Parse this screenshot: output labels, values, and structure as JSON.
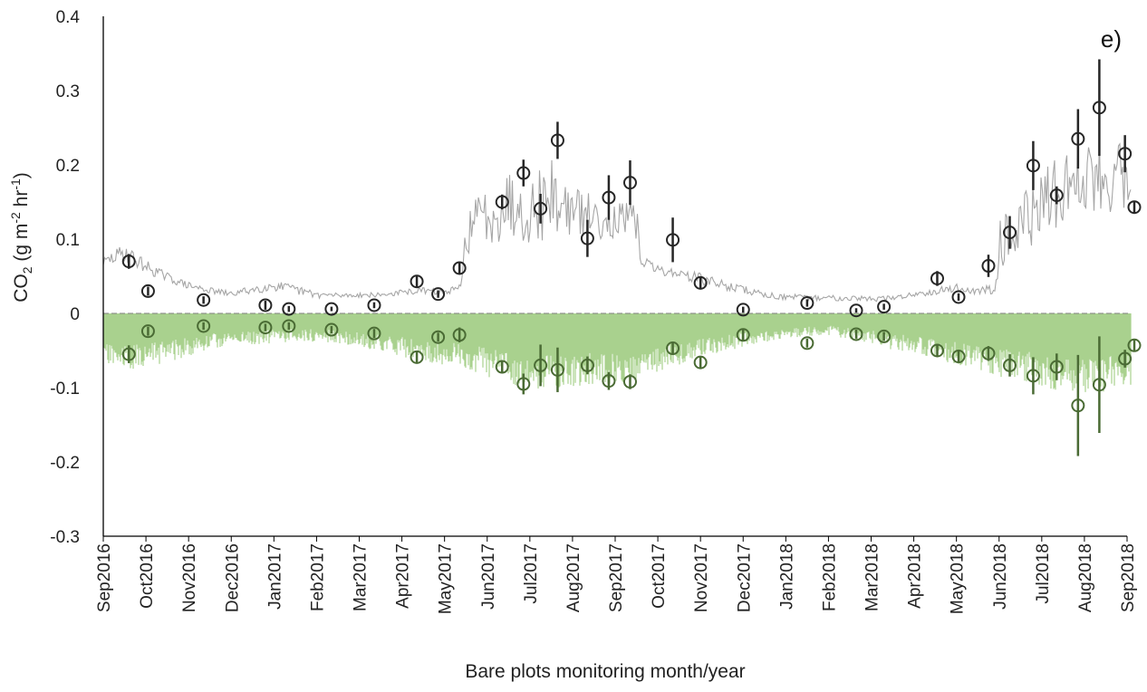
{
  "chart_data": {
    "type": "line",
    "panel_label": "e)",
    "xlabel": "Bare plots monitoring  month/year",
    "ylabel": "CO",
    "ylabel_sub": "2",
    "ylabel_units": " (g m",
    "ylabel_sup1": "-2",
    "ylabel_mid": " hr",
    "ylabel_sup2": "-1",
    "ylabel_end": ")",
    "ylim": [
      -0.3,
      0.4
    ],
    "y_ticks": [
      "0.4",
      "0.3",
      "0.2",
      "0.1",
      "0",
      "-0.1",
      "-0.2",
      "-0.3"
    ],
    "y_tick_values": [
      0.4,
      0.3,
      0.2,
      0.1,
      0,
      -0.1,
      -0.2,
      -0.3
    ],
    "x_range": [
      0,
      24
    ],
    "x_tick_labels": [
      "Sep2016",
      "Oct2016",
      "Nov2016",
      "Dec2016",
      "Jan2017",
      "Feb2017",
      "Mar2017",
      "Apr2017",
      "May2017",
      "Jun2017",
      "Jul2017",
      "Aug2017",
      "Sep2017",
      "Oct2017",
      "Nov2017",
      "Dec2017",
      "Jan2018",
      "Feb2018",
      "Mar2018",
      "Apr2018",
      "May2018",
      "Jun2018",
      "Jul2018",
      "Aug2018",
      "Sep2018"
    ],
    "colors": {
      "modeled_emission": "#a6a6a6",
      "modeled_uptake": "#a9d18e",
      "observed_emission": "#262626",
      "observed_uptake": "#4a6b34",
      "axis": "#000000",
      "zero_line": "#7f7f7f"
    },
    "series": [
      {
        "kind": "observed_emission",
        "points": [
          {
            "x": 0.6,
            "y": 0.07,
            "err": 0.01
          },
          {
            "x": 1.05,
            "y": 0.03,
            "err": 0.006
          },
          {
            "x": 2.35,
            "y": 0.018,
            "err": 0.005
          },
          {
            "x": 3.8,
            "y": 0.011,
            "err": 0.006
          },
          {
            "x": 4.35,
            "y": 0.006,
            "err": 0.004
          },
          {
            "x": 5.35,
            "y": 0.006,
            "err": 0.003
          },
          {
            "x": 6.35,
            "y": 0.011,
            "err": 0.004
          },
          {
            "x": 7.35,
            "y": 0.043,
            "err": 0.008
          },
          {
            "x": 7.85,
            "y": 0.026,
            "err": 0.005
          },
          {
            "x": 8.35,
            "y": 0.061,
            "err": 0.008
          },
          {
            "x": 9.35,
            "y": 0.15,
            "err": 0.01
          },
          {
            "x": 9.85,
            "y": 0.189,
            "err": 0.018
          },
          {
            "x": 10.25,
            "y": 0.141,
            "err": 0.02
          },
          {
            "x": 10.65,
            "y": 0.233,
            "err": 0.025
          },
          {
            "x": 11.35,
            "y": 0.101,
            "err": 0.025
          },
          {
            "x": 11.85,
            "y": 0.156,
            "err": 0.03
          },
          {
            "x": 12.35,
            "y": 0.176,
            "err": 0.03
          },
          {
            "x": 13.35,
            "y": 0.099,
            "err": 0.03
          },
          {
            "x": 14.0,
            "y": 0.041,
            "err": 0.008
          },
          {
            "x": 15.0,
            "y": 0.005,
            "err": 0.004
          },
          {
            "x": 16.5,
            "y": 0.014,
            "err": 0.005
          },
          {
            "x": 17.65,
            "y": 0.004,
            "err": 0.003
          },
          {
            "x": 18.3,
            "y": 0.009,
            "err": 0.004
          },
          {
            "x": 19.55,
            "y": 0.047,
            "err": 0.01
          },
          {
            "x": 20.05,
            "y": 0.022,
            "err": 0.005
          },
          {
            "x": 20.75,
            "y": 0.064,
            "err": 0.015
          },
          {
            "x": 21.25,
            "y": 0.109,
            "err": 0.022
          },
          {
            "x": 21.8,
            "y": 0.199,
            "err": 0.033
          },
          {
            "x": 22.35,
            "y": 0.159,
            "err": 0.012
          },
          {
            "x": 22.85,
            "y": 0.235,
            "err": 0.04
          },
          {
            "x": 23.35,
            "y": 0.277,
            "err": 0.065
          },
          {
            "x": 23.95,
            "y": 0.215,
            "err": 0.025
          },
          {
            "x": 24.85,
            "y": 0.143,
            "err": 0.008
          }
        ]
      },
      {
        "kind": "observed_uptake",
        "points": [
          {
            "x": 0.6,
            "y": -0.055,
            "err": 0.012
          },
          {
            "x": 1.05,
            "y": -0.024,
            "err": 0.006
          },
          {
            "x": 2.35,
            "y": -0.017,
            "err": 0.005
          },
          {
            "x": 3.8,
            "y": -0.019,
            "err": 0.005
          },
          {
            "x": 4.35,
            "y": -0.017,
            "err": 0.005
          },
          {
            "x": 5.35,
            "y": -0.022,
            "err": 0.005
          },
          {
            "x": 6.35,
            "y": -0.027,
            "err": 0.006
          },
          {
            "x": 7.35,
            "y": -0.059,
            "err": 0.008
          },
          {
            "x": 7.85,
            "y": -0.032,
            "err": 0.006
          },
          {
            "x": 8.35,
            "y": -0.029,
            "err": 0.01
          },
          {
            "x": 9.35,
            "y": -0.072,
            "err": 0.008
          },
          {
            "x": 9.85,
            "y": -0.095,
            "err": 0.014
          },
          {
            "x": 10.25,
            "y": -0.07,
            "err": 0.028
          },
          {
            "x": 10.65,
            "y": -0.076,
            "err": 0.03
          },
          {
            "x": 11.35,
            "y": -0.07,
            "err": 0.012
          },
          {
            "x": 11.85,
            "y": -0.091,
            "err": 0.012
          },
          {
            "x": 12.35,
            "y": -0.092,
            "err": 0.01
          },
          {
            "x": 13.35,
            "y": -0.047,
            "err": 0.008
          },
          {
            "x": 14.0,
            "y": -0.066,
            "err": 0.008
          },
          {
            "x": 15.0,
            "y": -0.029,
            "err": 0.008
          },
          {
            "x": 16.5,
            "y": -0.04,
            "err": 0.006
          },
          {
            "x": 17.65,
            "y": -0.028,
            "err": 0.006
          },
          {
            "x": 18.3,
            "y": -0.031,
            "err": 0.006
          },
          {
            "x": 19.55,
            "y": -0.05,
            "err": 0.008
          },
          {
            "x": 20.05,
            "y": -0.058,
            "err": 0.008
          },
          {
            "x": 20.75,
            "y": -0.054,
            "err": 0.01
          },
          {
            "x": 21.25,
            "y": -0.07,
            "err": 0.015
          },
          {
            "x": 21.8,
            "y": -0.084,
            "err": 0.025
          },
          {
            "x": 22.35,
            "y": -0.072,
            "err": 0.018
          },
          {
            "x": 22.85,
            "y": -0.124,
            "err": 0.068
          },
          {
            "x": 23.35,
            "y": -0.096,
            "err": 0.065
          },
          {
            "x": 23.95,
            "y": -0.061,
            "err": 0.012
          },
          {
            "x": 24.85,
            "y": -0.043,
            "err": 0.008
          }
        ]
      }
    ],
    "modeled_emission_envelope": {
      "x": [
        0,
        0.5,
        1,
        1.5,
        2,
        2.5,
        3,
        3.5,
        4,
        4.5,
        5,
        5.5,
        6,
        6.5,
        7,
        7.5,
        8,
        8.4,
        8.5,
        9,
        9.5,
        10,
        10.5,
        11,
        11.5,
        12,
        12.5,
        12.6,
        13,
        13.5,
        14,
        14.5,
        15,
        15.5,
        16,
        16.5,
        17,
        17.5,
        18,
        18.5,
        19,
        19.5,
        20,
        20.5,
        20.9,
        21.0,
        21.5,
        22,
        22.5,
        23,
        23.5,
        24,
        24.5,
        25
      ],
      "y_low": [
        0.055,
        0.055,
        0.045,
        0.035,
        0.028,
        0.022,
        0.018,
        0.02,
        0.022,
        0.018,
        0.015,
        0.016,
        0.018,
        0.018,
        0.02,
        0.022,
        0.02,
        0.025,
        0.08,
        0.09,
        0.1,
        0.095,
        0.1,
        0.105,
        0.1,
        0.1,
        0.095,
        0.055,
        0.045,
        0.04,
        0.03,
        0.025,
        0.02,
        0.015,
        0.013,
        0.013,
        0.012,
        0.013,
        0.012,
        0.013,
        0.017,
        0.02,
        0.022,
        0.018,
        0.02,
        0.06,
        0.08,
        0.1,
        0.12,
        0.13,
        0.13,
        0.13,
        0.12,
        0.095
      ],
      "y_high": [
        0.075,
        0.095,
        0.072,
        0.055,
        0.042,
        0.035,
        0.03,
        0.038,
        0.045,
        0.038,
        0.03,
        0.028,
        0.028,
        0.028,
        0.032,
        0.035,
        0.032,
        0.04,
        0.14,
        0.18,
        0.2,
        0.18,
        0.215,
        0.17,
        0.16,
        0.15,
        0.15,
        0.08,
        0.065,
        0.06,
        0.055,
        0.045,
        0.038,
        0.03,
        0.026,
        0.025,
        0.025,
        0.025,
        0.023,
        0.024,
        0.03,
        0.035,
        0.04,
        0.035,
        0.04,
        0.13,
        0.16,
        0.19,
        0.22,
        0.23,
        0.25,
        0.265,
        0.21,
        0.16
      ]
    },
    "modeled_uptake_envelope": {
      "x": [
        0,
        0.5,
        1,
        1.5,
        2,
        2.5,
        3,
        3.5,
        4,
        4.5,
        5,
        5.5,
        6,
        6.5,
        7,
        7.5,
        8,
        8.5,
        9,
        9.5,
        10,
        10.5,
        11,
        11.5,
        12,
        12.5,
        13,
        13.5,
        14,
        14.5,
        15,
        15.5,
        16,
        16.5,
        17,
        17.5,
        18,
        18.5,
        19,
        19.5,
        20,
        20.5,
        21,
        21.5,
        22,
        22.5,
        23,
        23.5,
        24,
        24.5,
        25
      ],
      "y_low": [
        -0.07,
        -0.078,
        -0.072,
        -0.066,
        -0.058,
        -0.05,
        -0.043,
        -0.042,
        -0.04,
        -0.038,
        -0.038,
        -0.04,
        -0.045,
        -0.052,
        -0.058,
        -0.066,
        -0.07,
        -0.075,
        -0.085,
        -0.095,
        -0.105,
        -0.1,
        -0.1,
        -0.095,
        -0.095,
        -0.09,
        -0.078,
        -0.07,
        -0.06,
        -0.052,
        -0.045,
        -0.04,
        -0.035,
        -0.032,
        -0.03,
        -0.035,
        -0.04,
        -0.05,
        -0.055,
        -0.06,
        -0.07,
        -0.075,
        -0.085,
        -0.09,
        -0.1,
        -0.105,
        -0.11,
        -0.105,
        -0.1,
        -0.09,
        -0.075
      ]
    }
  }
}
